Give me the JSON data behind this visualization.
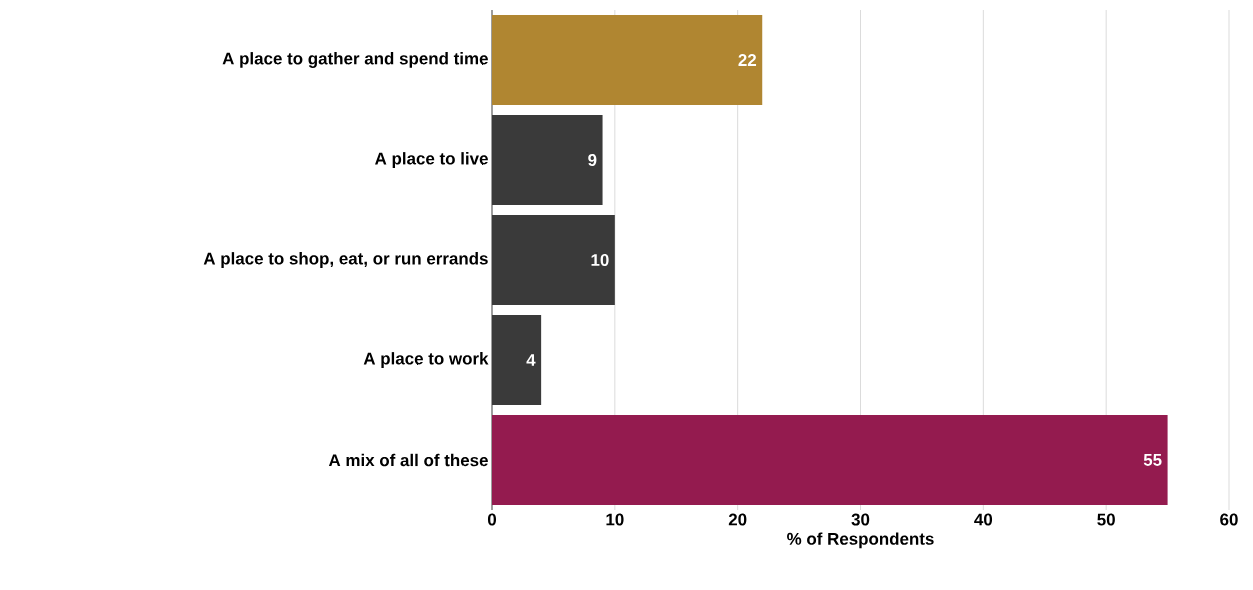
{
  "chart_data": {
    "type": "bar",
    "orientation": "horizontal",
    "categories": [
      "A place to gather and spend time",
      "A place to live",
      "A place to shop, eat, or run errands",
      "A place to work",
      "A mix of all of these"
    ],
    "values": [
      22,
      9,
      10,
      4,
      55
    ],
    "colors": [
      "#b08631",
      "#3a3a3a",
      "#3a3a3a",
      "#3a3a3a",
      "#941b4f"
    ],
    "xlim": [
      0,
      60
    ],
    "xticks": [
      0,
      10,
      20,
      30,
      40,
      50,
      60
    ],
    "xlabel": "% of Respondents",
    "grid": "x",
    "data_labels": true
  }
}
